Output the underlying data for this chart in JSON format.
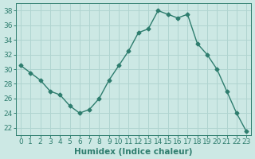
{
  "xlabel": "Humidex (Indice chaleur)",
  "x": [
    0,
    1,
    2,
    3,
    4,
    5,
    6,
    7,
    8,
    9,
    10,
    11,
    12,
    13,
    14,
    15,
    16,
    17,
    18,
    19,
    20,
    21,
    22,
    23
  ],
  "y": [
    30.5,
    29.5,
    28.5,
    27.0,
    26.5,
    25.0,
    24.0,
    24.5,
    26.0,
    28.5,
    30.5,
    32.5,
    35.0,
    35.5,
    38.0,
    37.5,
    37.0,
    37.5,
    33.5,
    32.0,
    30.0,
    27.0,
    24.0,
    21.5
  ],
  "xlim": [
    -0.5,
    23.5
  ],
  "ylim": [
    21,
    39
  ],
  "yticks": [
    22,
    24,
    26,
    28,
    30,
    32,
    34,
    36,
    38
  ],
  "xticks": [
    0,
    1,
    2,
    3,
    4,
    5,
    6,
    7,
    8,
    9,
    10,
    11,
    12,
    13,
    14,
    15,
    16,
    17,
    18,
    19,
    20,
    21,
    22,
    23
  ],
  "line_color": "#2e7d6e",
  "marker": "D",
  "marker_size": 2.5,
  "bg_color": "#cce8e4",
  "grid_color": "#b0d4d0",
  "xlabel_fontsize": 7.5,
  "tick_fontsize": 6.5,
  "line_width": 1.0
}
